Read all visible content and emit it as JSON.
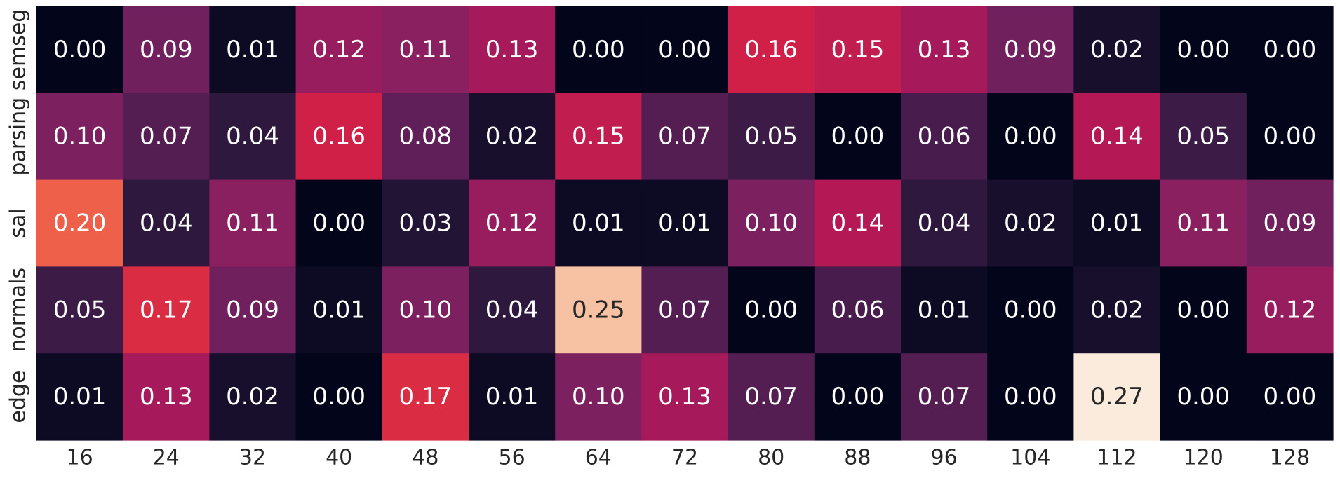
{
  "chart_data": {
    "type": "heatmap",
    "title": "",
    "xlabel": "",
    "ylabel": "",
    "colormap": "rocket",
    "colorbar": false,
    "value_range": [
      0.0,
      0.27
    ],
    "x_categories": [
      "16",
      "24",
      "32",
      "40",
      "48",
      "56",
      "64",
      "72",
      "80",
      "88",
      "96",
      "104",
      "112",
      "120",
      "128"
    ],
    "y_categories": [
      "semseg",
      "parsing",
      "sal",
      "normals",
      "edge"
    ],
    "values": [
      [
        0.0,
        0.09,
        0.01,
        0.12,
        0.11,
        0.13,
        0.0,
        0.0,
        0.16,
        0.15,
        0.13,
        0.09,
        0.02,
        0.0,
        0.0
      ],
      [
        0.1,
        0.07,
        0.04,
        0.16,
        0.08,
        0.02,
        0.15,
        0.07,
        0.05,
        0.0,
        0.06,
        0.0,
        0.14,
        0.05,
        0.0
      ],
      [
        0.2,
        0.04,
        0.11,
        0.0,
        0.03,
        0.12,
        0.01,
        0.01,
        0.1,
        0.14,
        0.04,
        0.02,
        0.01,
        0.11,
        0.09
      ],
      [
        0.05,
        0.17,
        0.09,
        0.01,
        0.1,
        0.04,
        0.25,
        0.07,
        0.0,
        0.06,
        0.01,
        0.0,
        0.02,
        0.0,
        0.12
      ],
      [
        0.01,
        0.13,
        0.02,
        0.0,
        0.17,
        0.01,
        0.1,
        0.13,
        0.07,
        0.0,
        0.07,
        0.0,
        0.27,
        0.0,
        0.0
      ]
    ],
    "annotation_format": "0.00"
  }
}
